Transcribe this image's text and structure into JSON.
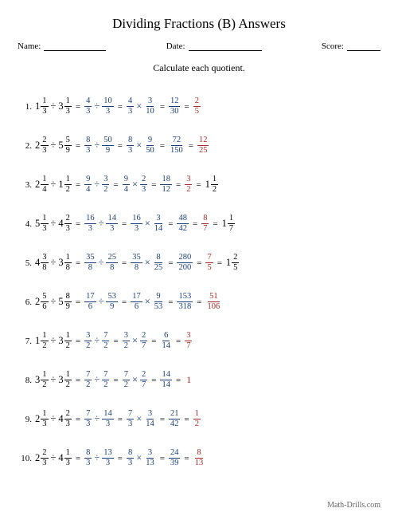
{
  "title": "Dividing Fractions (B) Answers",
  "header": {
    "name_label": "Name:",
    "date_label": "Date:",
    "score_label": "Score:"
  },
  "instruction": "Calculate each quotient.",
  "footer": "Math-Drills.com",
  "colors": {
    "problem": "#000000",
    "work": "#1a3e7a",
    "answer": "#a62828",
    "background": "#ffffff"
  },
  "problems": [
    {
      "n": "1.",
      "a": {
        "w": "1",
        "n": "1",
        "d": "3"
      },
      "b": {
        "w": "3",
        "n": "1",
        "d": "3"
      },
      "s1": {
        "an": "4",
        "ad": "3",
        "bn": "10",
        "bd": "3"
      },
      "s2": {
        "an": "4",
        "ad": "3",
        "bn": "3",
        "bd": "10"
      },
      "s3": {
        "n": "12",
        "d": "30"
      },
      "ans": {
        "n": "2",
        "d": "5"
      }
    },
    {
      "n": "2.",
      "a": {
        "w": "2",
        "n": "2",
        "d": "3"
      },
      "b": {
        "w": "5",
        "n": "5",
        "d": "9"
      },
      "s1": {
        "an": "8",
        "ad": "3",
        "bn": "50",
        "bd": "9"
      },
      "s2": {
        "an": "8",
        "ad": "3",
        "bn": "9",
        "bd": "50"
      },
      "s3": {
        "n": "72",
        "d": "150"
      },
      "ans": {
        "n": "12",
        "d": "25"
      }
    },
    {
      "n": "3.",
      "a": {
        "w": "2",
        "n": "1",
        "d": "4"
      },
      "b": {
        "w": "1",
        "n": "1",
        "d": "2"
      },
      "s1": {
        "an": "9",
        "ad": "4",
        "bn": "3",
        "bd": "2"
      },
      "s2": {
        "an": "9",
        "ad": "4",
        "bn": "2",
        "bd": "3"
      },
      "s3": {
        "n": "18",
        "d": "12"
      },
      "ans": {
        "n": "3",
        "d": "2"
      },
      "mix": {
        "w": "1",
        "n": "1",
        "d": "2"
      }
    },
    {
      "n": "4.",
      "a": {
        "w": "5",
        "n": "1",
        "d": "3"
      },
      "b": {
        "w": "4",
        "n": "2",
        "d": "3"
      },
      "s1": {
        "an": "16",
        "ad": "3",
        "bn": "14",
        "bd": "3"
      },
      "s2": {
        "an": "16",
        "ad": "3",
        "bn": "3",
        "bd": "14"
      },
      "s3": {
        "n": "48",
        "d": "42"
      },
      "ans": {
        "n": "8",
        "d": "7"
      },
      "mix": {
        "w": "1",
        "n": "1",
        "d": "7"
      }
    },
    {
      "n": "5.",
      "a": {
        "w": "4",
        "n": "3",
        "d": "8"
      },
      "b": {
        "w": "3",
        "n": "1",
        "d": "8"
      },
      "s1": {
        "an": "35",
        "ad": "8",
        "bn": "25",
        "bd": "8"
      },
      "s2": {
        "an": "35",
        "ad": "8",
        "bn": "8",
        "bd": "25"
      },
      "s3": {
        "n": "280",
        "d": "200"
      },
      "ans": {
        "n": "7",
        "d": "5"
      },
      "mix": {
        "w": "1",
        "n": "2",
        "d": "5"
      }
    },
    {
      "n": "6.",
      "a": {
        "w": "2",
        "n": "5",
        "d": "6"
      },
      "b": {
        "w": "5",
        "n": "8",
        "d": "9"
      },
      "s1": {
        "an": "17",
        "ad": "6",
        "bn": "53",
        "bd": "9"
      },
      "s2": {
        "an": "17",
        "ad": "6",
        "bn": "9",
        "bd": "53"
      },
      "s3": {
        "n": "153",
        "d": "318"
      },
      "ans": {
        "n": "51",
        "d": "106"
      }
    },
    {
      "n": "7.",
      "a": {
        "w": "1",
        "n": "1",
        "d": "2"
      },
      "b": {
        "w": "3",
        "n": "1",
        "d": "2"
      },
      "s1": {
        "an": "3",
        "ad": "2",
        "bn": "7",
        "bd": "2"
      },
      "s2": {
        "an": "3",
        "ad": "2",
        "bn": "2",
        "bd": "7"
      },
      "s3": {
        "n": "6",
        "d": "14"
      },
      "ans": {
        "n": "3",
        "d": "7"
      }
    },
    {
      "n": "8.",
      "a": {
        "w": "3",
        "n": "1",
        "d": "2"
      },
      "b": {
        "w": "3",
        "n": "1",
        "d": "2"
      },
      "s1": {
        "an": "7",
        "ad": "2",
        "bn": "7",
        "bd": "2"
      },
      "s2": {
        "an": "7",
        "ad": "2",
        "bn": "2",
        "bd": "7"
      },
      "s3": {
        "n": "14",
        "d": "14"
      },
      "ansSingle": "1"
    },
    {
      "n": "9.",
      "a": {
        "w": "2",
        "n": "1",
        "d": "3"
      },
      "b": {
        "w": "4",
        "n": "2",
        "d": "3"
      },
      "s1": {
        "an": "7",
        "ad": "3",
        "bn": "14",
        "bd": "3"
      },
      "s2": {
        "an": "7",
        "ad": "3",
        "bn": "3",
        "bd": "14"
      },
      "s3": {
        "n": "21",
        "d": "42"
      },
      "ans": {
        "n": "1",
        "d": "2"
      }
    },
    {
      "n": "10.",
      "a": {
        "w": "2",
        "n": "2",
        "d": "3"
      },
      "b": {
        "w": "4",
        "n": "1",
        "d": "3"
      },
      "s1": {
        "an": "8",
        "ad": "3",
        "bn": "13",
        "bd": "3"
      },
      "s2": {
        "an": "8",
        "ad": "3",
        "bn": "3",
        "bd": "13"
      },
      "s3": {
        "n": "24",
        "d": "39"
      },
      "ans": {
        "n": "8",
        "d": "13"
      }
    }
  ]
}
